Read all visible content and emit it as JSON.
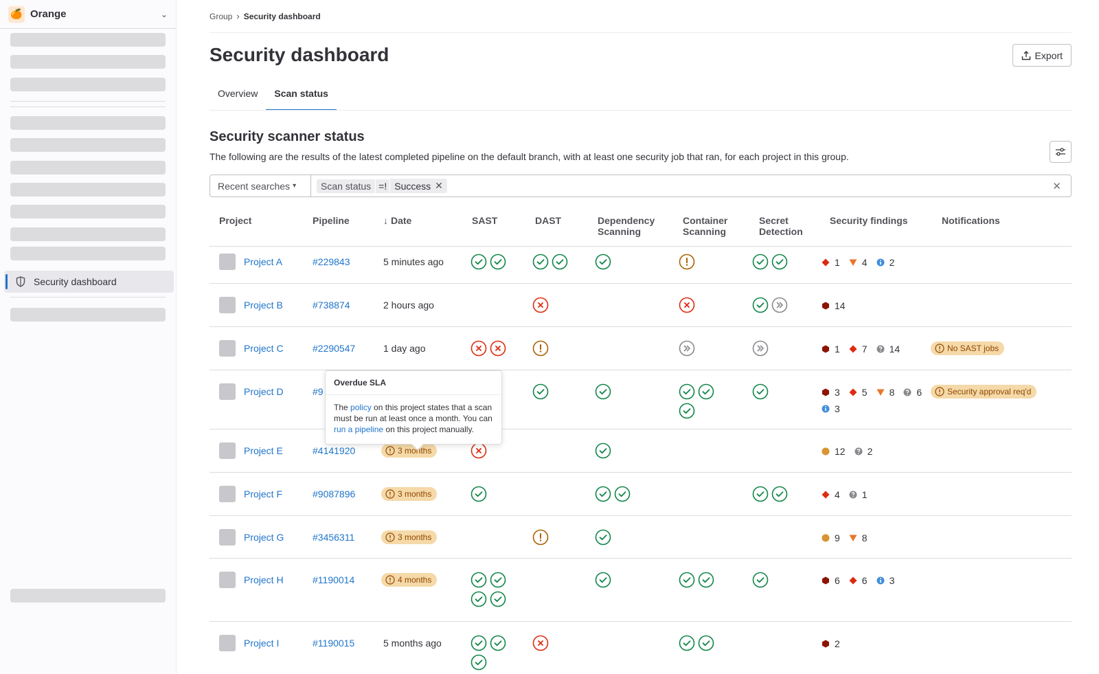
{
  "sidebar": {
    "org_name": "Orange",
    "active_item": "Security dashboard"
  },
  "breadcrumb": {
    "group": "Group",
    "current": "Security dashboard"
  },
  "page": {
    "title": "Security dashboard",
    "export_label": "Export"
  },
  "tabs": [
    {
      "label": "Overview"
    },
    {
      "label": "Scan status"
    }
  ],
  "section": {
    "title": "Security scanner status",
    "description": "The following are the results of the latest completed pipeline on the default branch, with at least one security job that ran, for each project in this group."
  },
  "filter": {
    "recent": "Recent searches",
    "token_key": "Scan status",
    "token_op": "=!",
    "token_value": "Success"
  },
  "columns": [
    "Project",
    "Pipeline",
    "Date",
    "SAST",
    "DAST",
    "Dependency Scanning",
    "Container Scanning",
    "Secret Detection",
    "Security findings",
    "Notifications"
  ],
  "tooltip": {
    "title": "Overdue SLA",
    "pre": "The ",
    "link1": "policy",
    "mid": " on this project states that a scan must be run at least once a month. You can ",
    "link2": "run a pipeline",
    "post": " on this project manually."
  },
  "rows": [
    {
      "project": "Project A",
      "pipeline": "#229843",
      "date": "5 minutes ago",
      "date_badge": false,
      "sast": [
        "ok",
        "ok"
      ],
      "dast": [
        "ok",
        "ok"
      ],
      "dep": [
        "ok"
      ],
      "cont": [
        "warn"
      ],
      "secret": [
        "ok",
        "ok"
      ],
      "findings": [
        [
          "high",
          "1"
        ],
        [
          "medium",
          "4"
        ],
        [
          "info",
          "2"
        ]
      ],
      "note": ""
    },
    {
      "project": "Project B",
      "pipeline": "#738874",
      "date": "2 hours ago",
      "date_badge": false,
      "sast": [],
      "dast": [
        "fail"
      ],
      "dep": [],
      "cont": [
        "fail"
      ],
      "secret": [
        "ok",
        "skip"
      ],
      "findings": [
        [
          "critical",
          "14"
        ]
      ],
      "note": ""
    },
    {
      "project": "Project C",
      "pipeline": "#2290547",
      "date": "1 day ago",
      "date_badge": false,
      "sast": [
        "fail",
        "fail"
      ],
      "dast": [
        "warn"
      ],
      "dep": [],
      "cont": [
        "skip"
      ],
      "secret": [
        "skip"
      ],
      "findings": [
        [
          "critical",
          "1"
        ],
        [
          "high",
          "7"
        ],
        [
          "unknown",
          "14"
        ]
      ],
      "note": "No SAST jobs"
    },
    {
      "project": "Project D",
      "pipeline": "#9",
      "date": "",
      "date_badge": false,
      "sast": [],
      "dast": [
        "ok"
      ],
      "dep": [
        "ok"
      ],
      "cont": [
        "ok",
        "ok",
        "ok"
      ],
      "secret": [
        "ok"
      ],
      "findings": [
        [
          "critical",
          "3"
        ],
        [
          "high",
          "5"
        ],
        [
          "medium",
          "8"
        ],
        [
          "unknown",
          "6"
        ],
        [
          "info",
          "3"
        ]
      ],
      "note": "Security approval req'd"
    },
    {
      "project": "Project E",
      "pipeline": "#4141920",
      "date": "3 months",
      "date_badge": true,
      "sast": [
        "fail"
      ],
      "dast": [],
      "dep": [
        "ok"
      ],
      "cont": [],
      "secret": [],
      "findings": [
        [
          "low",
          "12"
        ],
        [
          "unknown",
          "2"
        ]
      ],
      "note": ""
    },
    {
      "project": "Project F",
      "pipeline": "#9087896",
      "date": "3 months",
      "date_badge": true,
      "sast": [
        "ok"
      ],
      "dast": [],
      "dep": [
        "ok",
        "ok"
      ],
      "cont": [],
      "secret": [
        "ok",
        "ok"
      ],
      "findings": [
        [
          "high",
          "4"
        ],
        [
          "unknown",
          "1"
        ]
      ],
      "note": ""
    },
    {
      "project": "Project G",
      "pipeline": "#3456311",
      "date": "3 months",
      "date_badge": true,
      "sast": [],
      "dast": [
        "warn"
      ],
      "dep": [
        "ok"
      ],
      "cont": [],
      "secret": [],
      "findings": [
        [
          "low",
          "9"
        ],
        [
          "medium",
          "8"
        ]
      ],
      "note": ""
    },
    {
      "project": "Project H",
      "pipeline": "#1190014",
      "date": "4 months",
      "date_badge": true,
      "sast": [
        "ok",
        "ok",
        "ok",
        "ok"
      ],
      "dast": [],
      "dep": [
        "ok"
      ],
      "cont": [
        "ok",
        "ok"
      ],
      "secret": [
        "ok"
      ],
      "findings": [
        [
          "critical",
          "6"
        ],
        [
          "high",
          "6"
        ],
        [
          "info",
          "3"
        ]
      ],
      "note": ""
    },
    {
      "project": "Project I",
      "pipeline": "#1190015",
      "date": "5 months ago",
      "date_badge": false,
      "sast": [
        "ok",
        "ok",
        "ok"
      ],
      "dast": [
        "fail"
      ],
      "dep": [],
      "cont": [
        "ok",
        "ok"
      ],
      "secret": [],
      "findings": [
        [
          "critical",
          "2"
        ]
      ],
      "note": ""
    }
  ],
  "colors": {
    "ok": "#108548",
    "fail": "#dd2b0e",
    "warn": "#ab6100",
    "skip": "#89888d",
    "link": "#1f75cb",
    "critical": "#8d1300",
    "high": "#dd2b0e",
    "medium": "#e9762b",
    "low": "#d99530",
    "info": "#428fdc",
    "unknown": "#89888d"
  }
}
